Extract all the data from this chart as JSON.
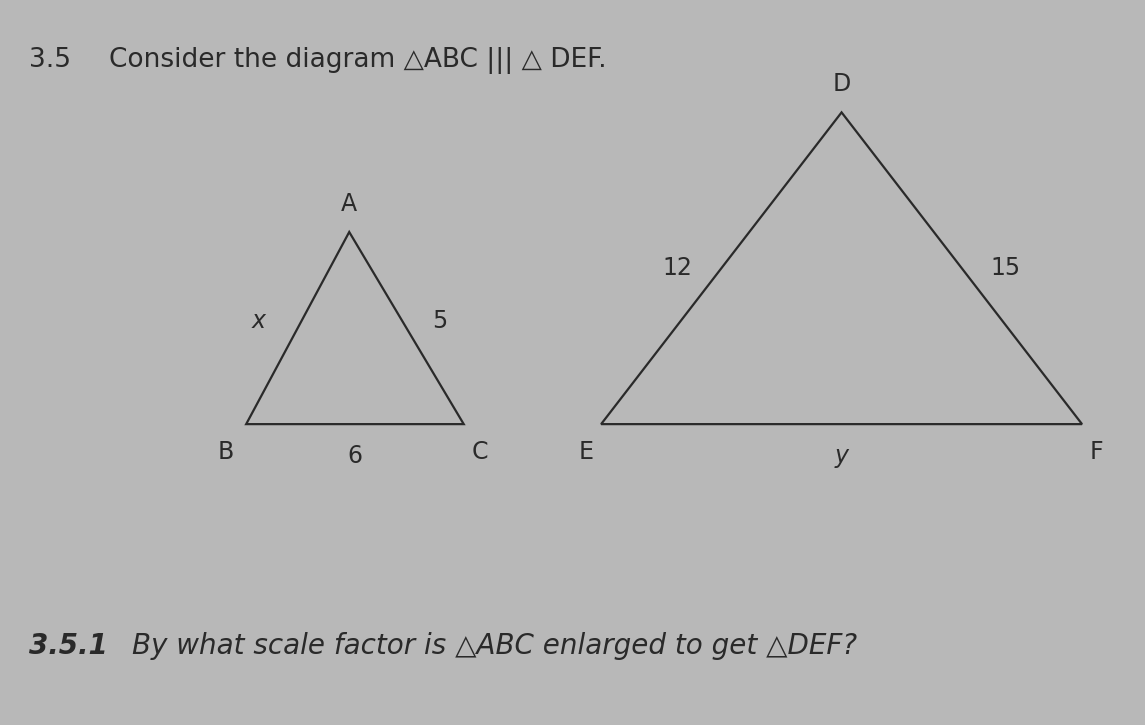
{
  "background_color": "#b8b8b8",
  "title_number": "3.5",
  "title_text": "Consider the diagram △ABC ||| △ DEF.",
  "title_fontsize": 19,
  "subtitle_number": "3.5.1",
  "subtitle_text": "By what scale factor is △ABC enlarged to get △DEF?",
  "subtitle_fontsize": 20,
  "small_triangle": {
    "B": [
      0.215,
      0.415
    ],
    "C": [
      0.405,
      0.415
    ],
    "A": [
      0.305,
      0.68
    ],
    "label_A": "A",
    "label_B": "B",
    "label_C": "C",
    "side_AB_label": "x",
    "side_AC_label": "5",
    "side_BC_label": "6",
    "color": "#2a2a2a",
    "linewidth": 1.6
  },
  "large_triangle": {
    "E": [
      0.525,
      0.415
    ],
    "F": [
      0.945,
      0.415
    ],
    "D": [
      0.735,
      0.845
    ],
    "label_D": "D",
    "label_E": "E",
    "label_F": "F",
    "side_DE_label": "12",
    "side_DF_label": "15",
    "side_EF_label": "y",
    "color": "#2a2a2a",
    "linewidth": 1.6
  },
  "vertex_fontsize": 17,
  "side_label_fontsize": 17,
  "text_color": "#2a2a2a"
}
